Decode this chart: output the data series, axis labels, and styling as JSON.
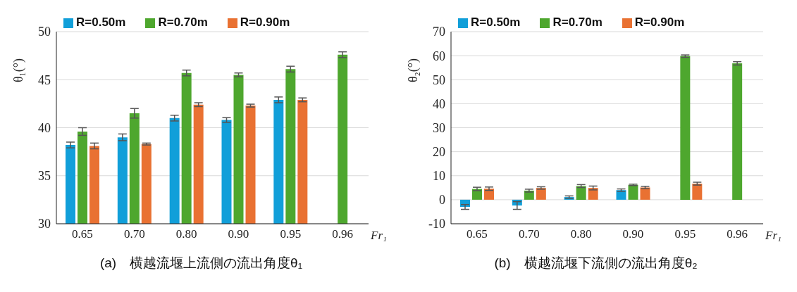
{
  "chart_data": [
    {
      "type": "bar",
      "title": "(a)　横越流堰上流側の流出角度θ₁",
      "xlabel": "Fr₁",
      "ylabel": "θ₁(°)",
      "categories": [
        "0.65",
        "0.70",
        "0.80",
        "0.90",
        "0.95",
        "0.96"
      ],
      "series": [
        {
          "name": "R=0.50m",
          "color": "#119fd9",
          "values": [
            38.2,
            39.0,
            41.0,
            40.8,
            42.9,
            null
          ],
          "errors": [
            0.3,
            0.35,
            0.3,
            0.25,
            0.3,
            null
          ]
        },
        {
          "name": "R=0.70m",
          "color": "#4ea72e",
          "values": [
            39.6,
            41.5,
            45.7,
            45.5,
            46.1,
            47.6
          ],
          "errors": [
            0.4,
            0.5,
            0.3,
            0.2,
            0.3,
            0.3
          ]
        },
        {
          "name": "R=0.90m",
          "color": "#e97132",
          "values": [
            38.1,
            38.3,
            42.4,
            42.3,
            42.9,
            null
          ],
          "errors": [
            0.3,
            0.1,
            0.2,
            0.15,
            0.2,
            null
          ]
        }
      ],
      "ylim": [
        30,
        50
      ],
      "yticks": [
        30,
        35,
        40,
        45,
        50
      ],
      "grid": "y",
      "legend": "top left"
    },
    {
      "type": "bar",
      "title": "(b)　横越流堰下流側の流出角度θ₂",
      "xlabel": "Fr₁",
      "ylabel": "θ₂(°)",
      "categories": [
        "0.65",
        "0.70",
        "0.80",
        "0.90",
        "0.95",
        "0.96"
      ],
      "series": [
        {
          "name": "R=0.50m",
          "color": "#119fd9",
          "values": [
            -3.0,
            -2.4,
            1.1,
            4.0,
            null,
            null
          ],
          "errors": [
            1.0,
            1.6,
            0.5,
            0.5,
            null,
            null
          ]
        },
        {
          "name": "R=0.70m",
          "color": "#4ea72e",
          "values": [
            4.5,
            3.8,
            5.7,
            6.2,
            59.8,
            56.8
          ],
          "errors": [
            0.7,
            0.6,
            0.6,
            0.3,
            0.5,
            0.7
          ]
        },
        {
          "name": "R=0.90m",
          "color": "#e97132",
          "values": [
            4.6,
            4.9,
            4.9,
            5.1,
            6.7,
            null
          ],
          "errors": [
            0.7,
            0.5,
            0.8,
            0.5,
            0.6,
            null
          ]
        }
      ],
      "ylim": [
        -10,
        70
      ],
      "yticks": [
        -10,
        0,
        10,
        20,
        30,
        40,
        50,
        60,
        70
      ],
      "grid": "y",
      "legend": "top left"
    }
  ]
}
